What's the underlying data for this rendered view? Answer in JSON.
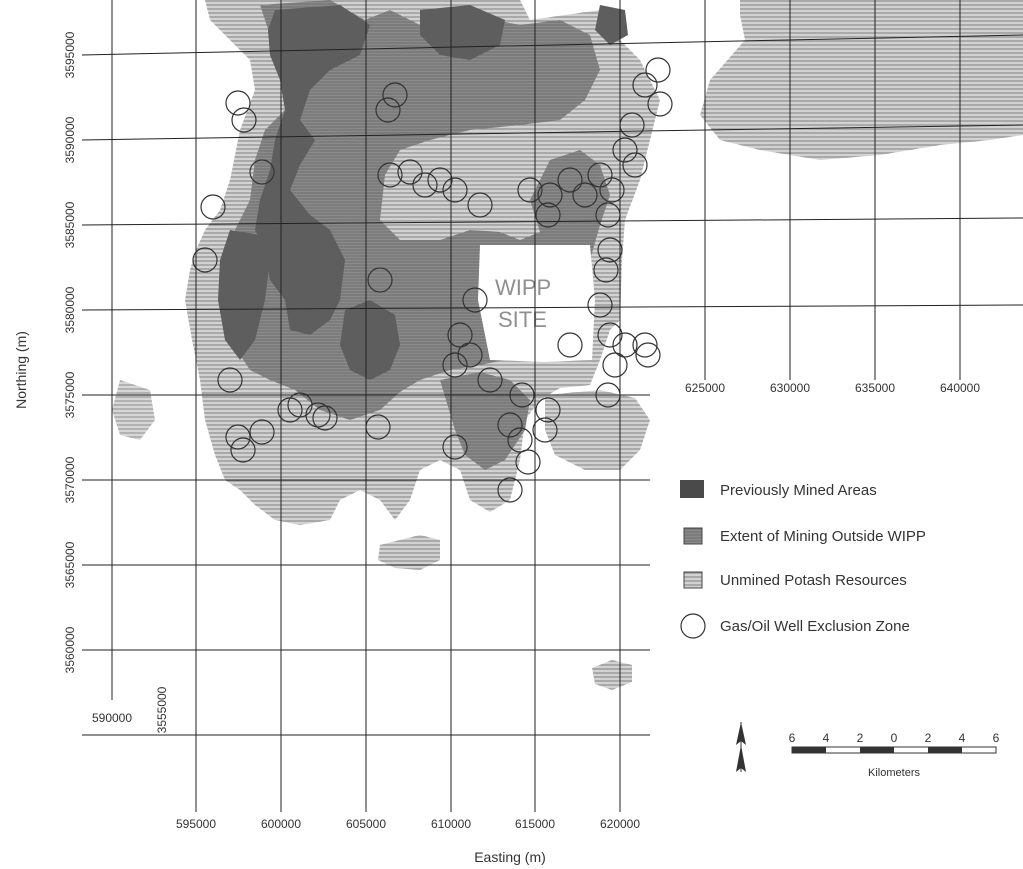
{
  "map": {
    "site_label_line1": "WIPP",
    "site_label_line2": "SITE",
    "x_axis_title": "Easting (m)",
    "y_axis_title": "Northing (m)",
    "easting_ticks": [
      "595000",
      "600000",
      "605000",
      "610000",
      "615000",
      "620000"
    ],
    "easting_ticks_east": [
      "625000",
      "630000",
      "635000",
      "640000"
    ],
    "easting_tick_west": "590000",
    "northing_ticks": [
      "3595000",
      "3590000",
      "3585000",
      "3580000",
      "3575000",
      "3570000",
      "3565000",
      "3560000",
      "3555000"
    ]
  },
  "legend": {
    "items": [
      {
        "label": "Previously Mined Areas",
        "symbol": "solid-dark"
      },
      {
        "label": "Extent of Mining Outside WIPP",
        "symbol": "dotted-medium"
      },
      {
        "label": "Unmined Potash Resources",
        "symbol": "horizontal-hatch"
      },
      {
        "label": "Gas/Oil Well Exclusion Zone",
        "symbol": "open-circle"
      }
    ]
  },
  "scale_bar": {
    "numbers": [
      "6",
      "4",
      "2",
      "0",
      "2",
      "4",
      "6"
    ],
    "unit": "Kilometers",
    "north_arrow": "north-arrow-icon"
  },
  "colors": {
    "previously_mined": "#5e5e5e",
    "mining_extent": "#8a8a8a",
    "potash_fill": "#c9c9c9",
    "potash_hatch": "#9a9a9a",
    "grid": "#222222"
  }
}
